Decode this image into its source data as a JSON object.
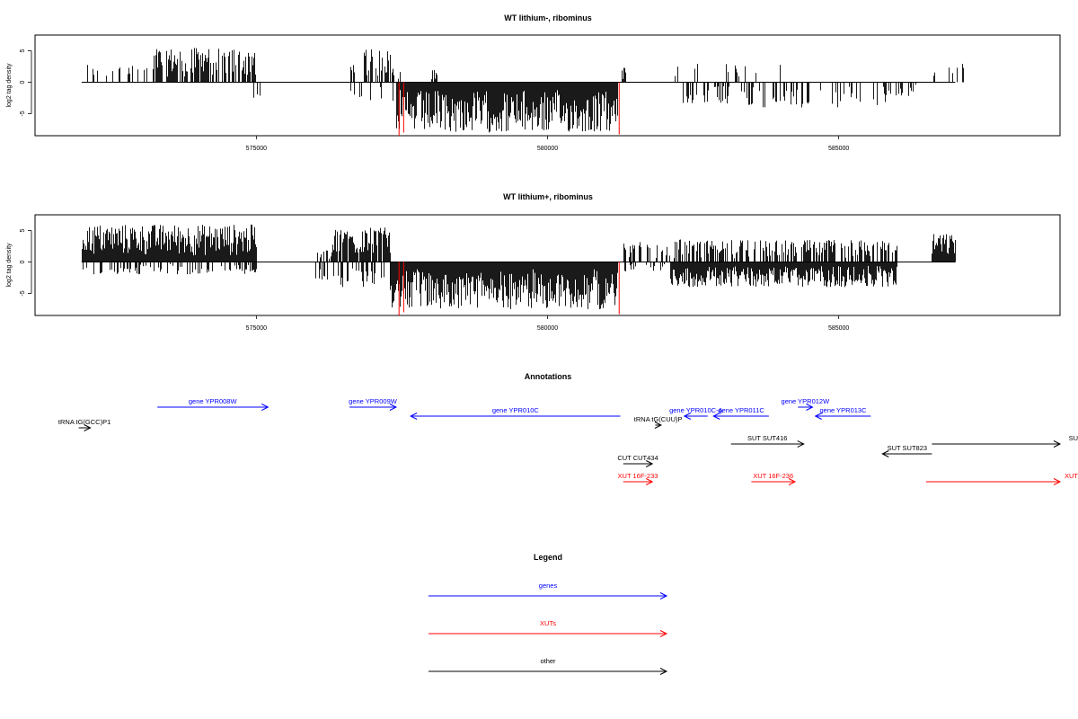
{
  "colors": {
    "genes": "#0000ff",
    "xuts": "#ff0000",
    "other": "#000000",
    "highlight": "#ff0000"
  },
  "chart_data": [
    {
      "type": "bar",
      "title": "WT lithium-, ribominus",
      "ylabel": "log2 tag density",
      "xlim": [
        571200,
        588800
      ],
      "ylim": [
        -8.5,
        7.5
      ],
      "yticks": [
        -5,
        0,
        5
      ],
      "xticks": [
        575000,
        580000,
        585000
      ],
      "xtick_labels": [
        "575000",
        "580000",
        "585000"
      ],
      "series": [
        {
          "strand": "+",
          "segments": [
            {
              "from": 572000,
              "to": 573200,
              "max": 3.0,
              "density": 0.25
            },
            {
              "from": 573200,
              "to": 575000,
              "max": 5.5,
              "density": 0.7
            },
            {
              "from": 574900,
              "to": 575100,
              "max": 1.0,
              "density": 0.3
            },
            {
              "from": 576600,
              "to": 577350,
              "max": 5.5,
              "density": 0.55
            },
            {
              "from": 577300,
              "to": 577500,
              "max": 2.5,
              "density": 0.3
            },
            {
              "from": 578000,
              "to": 578100,
              "max": 2.0,
              "density": 0.5
            },
            {
              "from": 581280,
              "to": 581330,
              "max": 2.5,
              "density": 1.0
            },
            {
              "from": 581800,
              "to": 582600,
              "max": 3.0,
              "density": 0.1
            },
            {
              "from": 583000,
              "to": 584000,
              "max": 3.0,
              "density": 0.08
            },
            {
              "from": 586600,
              "to": 587400,
              "max": 3.0,
              "density": 0.2
            }
          ]
        },
        {
          "strand": "-",
          "segments": [
            {
              "from": 574900,
              "to": 575050,
              "max": 2.5,
              "density": 0.3
            },
            {
              "from": 576600,
              "to": 577400,
              "max": 3.0,
              "density": 0.15
            },
            {
              "from": 577400,
              "to": 581200,
              "max": 8.0,
              "density": 1.0
            },
            {
              "from": 582300,
              "to": 583200,
              "max": 3.5,
              "density": 0.3
            },
            {
              "from": 583300,
              "to": 585800,
              "max": 4.0,
              "density": 0.3
            },
            {
              "from": 585800,
              "to": 586400,
              "max": 2.5,
              "density": 0.3
            }
          ]
        }
      ],
      "highlights": [
        {
          "x": 577450,
          "value": -8.5
        },
        {
          "x": 577530,
          "value": -8.0
        },
        {
          "x": 581230,
          "value": -8.3
        }
      ]
    },
    {
      "type": "bar",
      "title": "WT lithium+, ribominus",
      "ylabel": "log2 tag density",
      "xlim": [
        571200,
        588800
      ],
      "ylim": [
        -8.5,
        7.5
      ],
      "yticks": [
        -5,
        0,
        5
      ],
      "xticks": [
        575000,
        580000,
        585000
      ],
      "xtick_labels": [
        "575000",
        "580000",
        "585000"
      ],
      "series": [
        {
          "strand": "+",
          "segments": [
            {
              "from": 572000,
              "to": 575000,
              "max": 6.0,
              "density": 1.0
            },
            {
              "from": 576000,
              "to": 576300,
              "max": 2.0,
              "density": 0.3
            },
            {
              "from": 576300,
              "to": 577300,
              "max": 5.5,
              "density": 0.8
            },
            {
              "from": 581300,
              "to": 581800,
              "max": 3.5,
              "density": 0.5
            },
            {
              "from": 581800,
              "to": 582300,
              "max": 4.0,
              "density": 0.4
            },
            {
              "from": 582300,
              "to": 586000,
              "max": 3.5,
              "density": 0.6
            },
            {
              "from": 586600,
              "to": 587000,
              "max": 4.5,
              "density": 1.0
            }
          ]
        },
        {
          "strand": "-",
          "segments": [
            {
              "from": 572000,
              "to": 572300,
              "max": 2.0,
              "density": 0.3
            },
            {
              "from": 572300,
              "to": 575000,
              "max": 2.0,
              "density": 0.4
            },
            {
              "from": 576000,
              "to": 577300,
              "max": 4.0,
              "density": 0.4
            },
            {
              "from": 577300,
              "to": 581200,
              "max": 7.5,
              "density": 1.0
            },
            {
              "from": 581300,
              "to": 582000,
              "max": 1.5,
              "density": 0.3
            },
            {
              "from": 582100,
              "to": 586000,
              "max": 4.0,
              "density": 1.0
            }
          ]
        }
      ],
      "highlights": [
        {
          "x": 577450,
          "value": -8.5
        },
        {
          "x": 577530,
          "value": -8.0
        },
        {
          "x": 581230,
          "value": -8.3
        }
      ]
    }
  ],
  "annotations": {
    "title": "Annotations",
    "features": [
      {
        "label": "tRNA tG(GCC)P1",
        "start": 571950,
        "end": 572150,
        "strand": "+",
        "row": 3,
        "kind": "other"
      },
      {
        "label": "gene YPR008W",
        "start": 573300,
        "end": 575200,
        "strand": "+",
        "row": 0,
        "kind": "genes"
      },
      {
        "label": "gene YPR009W",
        "start": 576600,
        "end": 577400,
        "strand": "+",
        "row": 0,
        "kind": "genes"
      },
      {
        "label": "gene YPR010C",
        "start": 577650,
        "end": 581250,
        "strand": "-",
        "row": 1,
        "kind": "genes"
      },
      {
        "label": "tRNA tG(CUU)P",
        "start": 581850,
        "end": 581950,
        "strand": "+",
        "row": 2,
        "kind": "other"
      },
      {
        "label": "gene YPR010C-A",
        "start": 582350,
        "end": 582750,
        "strand": "-",
        "row": 1,
        "kind": "genes"
      },
      {
        "label": "gene YPR011C",
        "start": 582850,
        "end": 583800,
        "strand": "-",
        "row": 1,
        "kind": "genes"
      },
      {
        "label": "gene YPR012W",
        "start": 584300,
        "end": 584550,
        "strand": "+",
        "row": 0,
        "kind": "genes"
      },
      {
        "label": "gene YPR013C",
        "start": 584600,
        "end": 585550,
        "strand": "-",
        "row": 1,
        "kind": "genes"
      },
      {
        "label": "SUT SUT416",
        "start": 583150,
        "end": 584400,
        "strand": "+",
        "row": 4,
        "kind": "other"
      },
      {
        "label": "SUT SUT823",
        "start": 585750,
        "end": 586600,
        "strand": "-",
        "row": 5,
        "kind": "other"
      },
      {
        "label": "SU",
        "start": 586600,
        "end": 588800,
        "strand": "+",
        "row": 4,
        "kind": "other"
      },
      {
        "label": "CUT CUT434",
        "start": 581300,
        "end": 581800,
        "strand": "+",
        "row": 6,
        "kind": "other"
      },
      {
        "label": "XUT 16F-233",
        "start": 581300,
        "end": 581800,
        "strand": "+",
        "row": 7,
        "kind": "xuts"
      },
      {
        "label": "XUT 16F-236",
        "start": 583500,
        "end": 584250,
        "strand": "+",
        "row": 7,
        "kind": "xuts"
      },
      {
        "label": "XUT",
        "start": 586500,
        "end": 588800,
        "strand": "+",
        "row": 7,
        "kind": "xuts"
      }
    ]
  },
  "legend": {
    "title": "Legend",
    "entries": [
      {
        "label": "genes",
        "kind": "genes"
      },
      {
        "label": "XUTs",
        "kind": "xuts"
      },
      {
        "label": "other",
        "kind": "other"
      }
    ]
  }
}
